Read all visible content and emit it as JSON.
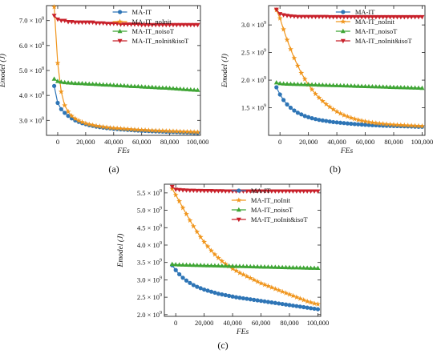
{
  "figure": {
    "panels": [
      {
        "id": "a",
        "label": "(a)"
      },
      {
        "id": "b",
        "label": "(b)"
      },
      {
        "id": "c",
        "label": "(c)"
      }
    ]
  },
  "colors": {
    "MA-IT": "#2e75b6",
    "MA-IT_noInit": "#f0961e",
    "MA-IT_noisoT": "#3fa535",
    "MA-IT_noInit&isoT": "#c8202a"
  },
  "chart_data": [
    {
      "panel": "(a)",
      "type": "line",
      "xlabel": "FEs",
      "ylabel": "Emodel (J)",
      "xlim": [
        -8000,
        102000
      ],
      "ylim": [
        240000000,
        760000000
      ],
      "xticks": [
        0,
        20000,
        40000,
        60000,
        80000,
        100000
      ],
      "xtick_labels": [
        "0",
        "20,000",
        "40,000",
        "60,000",
        "80,000",
        "100,000"
      ],
      "yticks": [
        300000000,
        400000000,
        500000000,
        600000000,
        700000000
      ],
      "ytick_labels": [
        "3.0 × 10^8",
        "4.0 × 10^8",
        "5.0 × 10^8",
        "6.0 × 10^8",
        "7.0 × 10^8"
      ],
      "legend_position": "top-right",
      "x": [
        -2500,
        0,
        2500,
        5000,
        7500,
        10000,
        12500,
        15000,
        17500,
        20000,
        22500,
        25000,
        27500,
        30000,
        32500,
        35000,
        37500,
        40000,
        42500,
        45000,
        47500,
        50000,
        52500,
        55000,
        57500,
        60000,
        62500,
        65000,
        67500,
        70000,
        72500,
        75000,
        77500,
        80000,
        82500,
        85000,
        87500,
        90000,
        92500,
        95000,
        97500,
        100000
      ],
      "series": [
        {
          "name": "MA-IT",
          "marker": "circle",
          "values": [
            438000000,
            370000000,
            345000000,
            330000000,
            318000000,
            308000000,
            300000000,
            294000000,
            289000000,
            285000000,
            281000000,
            278000000,
            275000000,
            273000000,
            271000000,
            269000000,
            268000000,
            266000000,
            265000000,
            264000000,
            263000000,
            262000000,
            261000000,
            260000000,
            259000000,
            258500000,
            258000000,
            257000000,
            256500000,
            256000000,
            255500000,
            255000000,
            254500000,
            254000000,
            253500000,
            253000000,
            252500000,
            252000000,
            251500000,
            251000000,
            250500000,
            250000000
          ]
        },
        {
          "name": "MA-IT_noInit",
          "marker": "star",
          "values": [
            755000000,
            530000000,
            415000000,
            360000000,
            335000000,
            318000000,
            307000000,
            299000000,
            293000000,
            288000000,
            284000000,
            281000000,
            278000000,
            276000000,
            274000000,
            272000000,
            270000000,
            269000000,
            268000000,
            267000000,
            266000000,
            265000000,
            264000000,
            263000000,
            262000000,
            261500000,
            261000000,
            260000000,
            259500000,
            259000000,
            258500000,
            258000000,
            257500000,
            257000000,
            256500000,
            256000000,
            255500000,
            255000000,
            254500000,
            254000000,
            253500000,
            253000000
          ]
        },
        {
          "name": "MA-IT_noisoT",
          "marker": "triangle-up",
          "values": [
            466000000,
            457000000,
            454000000,
            452000000,
            451000000,
            450000000,
            449000000,
            448500000,
            448000000,
            447000000,
            446000000,
            445500000,
            445000000,
            444000000,
            443000000,
            442500000,
            442000000,
            441000000,
            440000000,
            439500000,
            439000000,
            438000000,
            437000000,
            436500000,
            436000000,
            435000000,
            434000000,
            433500000,
            433000000,
            432000000,
            431000000,
            430500000,
            430000000,
            429000000,
            428000000,
            427000000,
            426000000,
            425000000,
            424000000,
            423000000,
            422000000,
            421000000
          ]
        },
        {
          "name": "MA-IT_noInit&isoT",
          "marker": "triangle-down",
          "values": [
            720000000,
            705000000,
            700000000,
            700000000,
            695000000,
            695000000,
            693000000,
            693000000,
            693000000,
            693000000,
            693000000,
            693000000,
            690000000,
            690000000,
            690000000,
            688000000,
            688000000,
            688000000,
            688000000,
            685000000,
            685000000,
            685000000,
            685000000,
            685000000,
            685000000,
            683000000,
            683000000,
            683000000,
            683000000,
            683000000,
            683000000,
            683000000,
            683000000,
            683000000,
            683000000,
            683000000,
            683000000,
            683000000,
            683000000,
            683000000,
            683000000,
            683000000
          ]
        }
      ]
    },
    {
      "panel": "(b)",
      "type": "line",
      "xlabel": "FEs",
      "ylabel": "Emodel (J)",
      "xlim": [
        -8000,
        102000
      ],
      "ylim": [
        1000000000,
        3350000000
      ],
      "xticks": [
        0,
        20000,
        40000,
        60000,
        80000,
        100000
      ],
      "xtick_labels": [
        "0",
        "20,000",
        "40,000",
        "60,000",
        "80,000",
        "100,000"
      ],
      "yticks": [
        1500000000,
        2000000000,
        2500000000,
        3000000000
      ],
      "ytick_labels": [
        "1.5 × 10^9",
        "2.0 × 10^9",
        "2.5 × 10^9",
        "3.0 × 10^9"
      ],
      "legend_position": "top-right",
      "x": [
        -2500,
        0,
        2500,
        5000,
        7500,
        10000,
        12500,
        15000,
        17500,
        20000,
        22500,
        25000,
        27500,
        30000,
        32500,
        35000,
        37500,
        40000,
        42500,
        45000,
        47500,
        50000,
        52500,
        55000,
        57500,
        60000,
        62500,
        65000,
        67500,
        70000,
        72500,
        75000,
        77500,
        80000,
        82500,
        85000,
        87500,
        90000,
        92500,
        95000,
        97500,
        100000
      ],
      "series": [
        {
          "name": "MA-IT",
          "marker": "circle",
          "values": [
            1870000000,
            1740000000,
            1640000000,
            1560000000,
            1500000000,
            1450000000,
            1410000000,
            1380000000,
            1350000000,
            1330000000,
            1310000000,
            1295000000,
            1280000000,
            1270000000,
            1260000000,
            1250000000,
            1240000000,
            1235000000,
            1228000000,
            1222000000,
            1216000000,
            1210000000,
            1205000000,
            1200000000,
            1196000000,
            1192000000,
            1188000000,
            1185000000,
            1182000000,
            1179000000,
            1176000000,
            1174000000,
            1172000000,
            1170000000,
            1168000000,
            1166000000,
            1164000000,
            1162000000,
            1160000000,
            1158000000,
            1156000000,
            1155000000
          ]
        },
        {
          "name": "MA-IT_noInit",
          "marker": "star",
          "values": [
            3270000000,
            3120000000,
            2920000000,
            2730000000,
            2560000000,
            2400000000,
            2260000000,
            2130000000,
            2020000000,
            1920000000,
            1830000000,
            1750000000,
            1680000000,
            1620000000,
            1565000000,
            1515000000,
            1470000000,
            1430000000,
            1395000000,
            1365000000,
            1340000000,
            1318000000,
            1298000000,
            1280000000,
            1265000000,
            1252000000,
            1240000000,
            1230000000,
            1222000000,
            1215000000,
            1208000000,
            1202000000,
            1197000000,
            1193000000,
            1189000000,
            1185000000,
            1182000000,
            1179000000,
            1176000000,
            1173000000,
            1170000000,
            1167000000
          ]
        },
        {
          "name": "MA-IT_noisoT",
          "marker": "triangle-up",
          "values": [
            1955000000,
            1940000000,
            1935000000,
            1932000000,
            1930000000,
            1928000000,
            1926000000,
            1924000000,
            1922000000,
            1920000000,
            1918000000,
            1916000000,
            1914000000,
            1912000000,
            1910000000,
            1908000000,
            1906000000,
            1904000000,
            1902000000,
            1900000000,
            1898000000,
            1896000000,
            1894000000,
            1892000000,
            1890000000,
            1888000000,
            1886000000,
            1884000000,
            1882000000,
            1880000000,
            1878000000,
            1876000000,
            1874000000,
            1872000000,
            1870000000,
            1868000000,
            1866000000,
            1864000000,
            1862000000,
            1860000000,
            1858000000,
            1856000000
          ]
        },
        {
          "name": "MA-IT_noInit&isoT",
          "marker": "triangle-down",
          "values": [
            3280000000,
            3200000000,
            3180000000,
            3170000000,
            3160000000,
            3155000000,
            3150000000,
            3150000000,
            3150000000,
            3150000000,
            3150000000,
            3150000000,
            3150000000,
            3150000000,
            3150000000,
            3145000000,
            3145000000,
            3145000000,
            3145000000,
            3145000000,
            3145000000,
            3145000000,
            3145000000,
            3145000000,
            3145000000,
            3145000000,
            3145000000,
            3145000000,
            3145000000,
            3145000000,
            3145000000,
            3145000000,
            3145000000,
            3145000000,
            3145000000,
            3145000000,
            3145000000,
            3145000000,
            3145000000,
            3145000000,
            3145000000,
            3145000000
          ]
        }
      ]
    },
    {
      "panel": "(c)",
      "type": "line",
      "xlabel": "FEs",
      "ylabel": "Emodel (J)",
      "xlim": [
        -8000,
        102000
      ],
      "ylim": [
        1950000000,
        5750000000
      ],
      "xticks": [
        0,
        20000,
        40000,
        60000,
        80000,
        100000
      ],
      "xtick_labels": [
        "0",
        "20,000",
        "40,000",
        "60,000",
        "80,000",
        "100,000"
      ],
      "yticks": [
        2000000000,
        2500000000,
        3000000000,
        3500000000,
        4000000000,
        4500000000,
        5000000000,
        5500000000
      ],
      "ytick_labels": [
        "2.0 × 10^9",
        "2.5 × 10^9",
        "3.0 × 10^9",
        "3.5 × 10^9",
        "4.0 × 10^9",
        "4.5 × 10^9",
        "5.0 × 10^9",
        "5.5 × 10^9"
      ],
      "legend_position": "top-right",
      "x": [
        -2500,
        0,
        2500,
        5000,
        7500,
        10000,
        12500,
        15000,
        17500,
        20000,
        22500,
        25000,
        27500,
        30000,
        32500,
        35000,
        37500,
        40000,
        42500,
        45000,
        47500,
        50000,
        52500,
        55000,
        57500,
        60000,
        62500,
        65000,
        67500,
        70000,
        72500,
        75000,
        77500,
        80000,
        82500,
        85000,
        87500,
        90000,
        92500,
        95000,
        97500,
        100000
      ],
      "series": [
        {
          "name": "MA-IT",
          "marker": "circle",
          "values": [
            3420000000,
            3280000000,
            3160000000,
            3060000000,
            2980000000,
            2910000000,
            2850000000,
            2800000000,
            2760000000,
            2720000000,
            2690000000,
            2660000000,
            2630000000,
            2600000000,
            2580000000,
            2560000000,
            2540000000,
            2520000000,
            2500000000,
            2485000000,
            2470000000,
            2455000000,
            2440000000,
            2425000000,
            2410000000,
            2395000000,
            2380000000,
            2365000000,
            2350000000,
            2335000000,
            2320000000,
            2305000000,
            2290000000,
            2275000000,
            2260000000,
            2245000000,
            2230000000,
            2215000000,
            2200000000,
            2185000000,
            2170000000,
            2155000000
          ]
        },
        {
          "name": "MA-IT_noInit",
          "marker": "star",
          "values": [
            5620000000,
            5440000000,
            5260000000,
            5070000000,
            4890000000,
            4710000000,
            4540000000,
            4380000000,
            4230000000,
            4090000000,
            3960000000,
            3840000000,
            3730000000,
            3630000000,
            3540000000,
            3460000000,
            3390000000,
            3320000000,
            3260000000,
            3200000000,
            3150000000,
            3100000000,
            3050000000,
            3000000000,
            2950000000,
            2900000000,
            2860000000,
            2820000000,
            2780000000,
            2740000000,
            2700000000,
            2660000000,
            2620000000,
            2580000000,
            2540000000,
            2500000000,
            2460000000,
            2420000000,
            2380000000,
            2350000000,
            2320000000,
            2300000000
          ]
        },
        {
          "name": "MA-IT_noisoT",
          "marker": "triangle-up",
          "values": [
            3450000000,
            3440000000,
            3435000000,
            3430000000,
            3428000000,
            3425000000,
            3422000000,
            3420000000,
            3418000000,
            3415000000,
            3412000000,
            3410000000,
            3408000000,
            3405000000,
            3402000000,
            3400000000,
            3398000000,
            3395000000,
            3392000000,
            3390000000,
            3388000000,
            3385000000,
            3382000000,
            3380000000,
            3378000000,
            3375000000,
            3372000000,
            3370000000,
            3368000000,
            3365000000,
            3362000000,
            3360000000,
            3358000000,
            3355000000,
            3352000000,
            3350000000,
            3348000000,
            3345000000,
            3342000000,
            3340000000,
            3338000000,
            3335000000
          ]
        },
        {
          "name": "MA-IT_noInit&isoT",
          "marker": "triangle-down",
          "values": [
            5680000000,
            5600000000,
            5590000000,
            5580000000,
            5575000000,
            5570000000,
            5570000000,
            5565000000,
            5565000000,
            5560000000,
            5560000000,
            5560000000,
            5555000000,
            5555000000,
            5555000000,
            5550000000,
            5550000000,
            5550000000,
            5550000000,
            5550000000,
            5550000000,
            5550000000,
            5550000000,
            5550000000,
            5550000000,
            5550000000,
            5550000000,
            5550000000,
            5550000000,
            5550000000,
            5550000000,
            5550000000,
            5550000000,
            5550000000,
            5550000000,
            5550000000,
            5550000000,
            5550000000,
            5550000000,
            5550000000,
            5550000000,
            5550000000
          ]
        }
      ]
    }
  ]
}
